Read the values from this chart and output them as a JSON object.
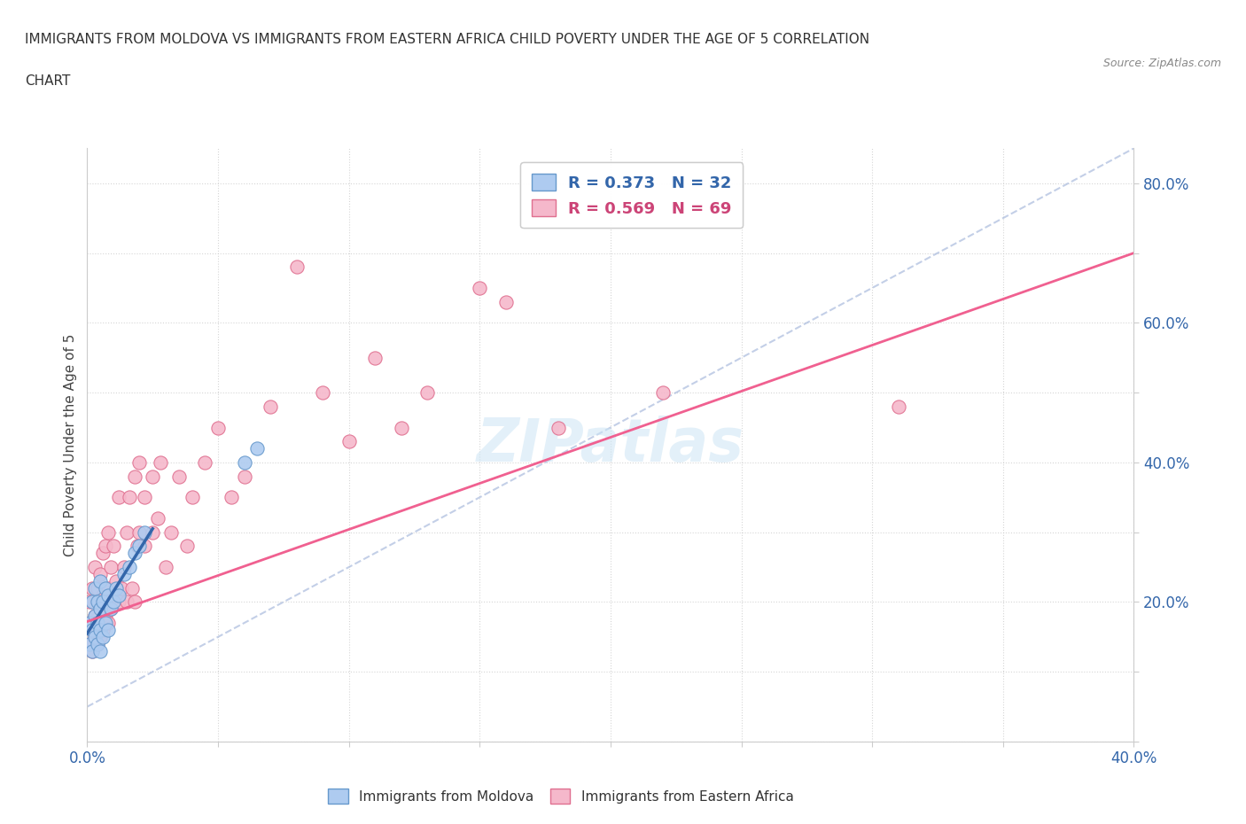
{
  "title_line1": "IMMIGRANTS FROM MOLDOVA VS IMMIGRANTS FROM EASTERN AFRICA CHILD POVERTY UNDER THE AGE OF 5 CORRELATION",
  "title_line2": "CHART",
  "source_text": "Source: ZipAtlas.com",
  "ylabel_label": "Child Poverty Under the Age of 5",
  "xlim": [
    0.0,
    0.4
  ],
  "ylim": [
    0.0,
    0.85
  ],
  "watermark": "ZIPatlas",
  "moldova_color": "#aecbf0",
  "moldova_edge": "#6699cc",
  "eastern_africa_color": "#f5b8cb",
  "eastern_africa_edge": "#e07090",
  "trend_moldova_color": "#3366aa",
  "trend_moldova_dash_color": "#aaaacc",
  "trend_eastern_africa_color": "#f06090",
  "moldova_R": 0.373,
  "moldova_N": 32,
  "eastern_africa_R": 0.569,
  "eastern_africa_N": 69,
  "moldova_scatter_x": [
    0.001,
    0.001,
    0.002,
    0.002,
    0.002,
    0.003,
    0.003,
    0.003,
    0.004,
    0.004,
    0.004,
    0.005,
    0.005,
    0.005,
    0.005,
    0.006,
    0.006,
    0.007,
    0.007,
    0.008,
    0.008,
    0.009,
    0.01,
    0.011,
    0.012,
    0.014,
    0.016,
    0.018,
    0.02,
    0.022,
    0.06,
    0.065
  ],
  "moldova_scatter_y": [
    0.14,
    0.17,
    0.13,
    0.16,
    0.2,
    0.15,
    0.18,
    0.22,
    0.14,
    0.17,
    0.2,
    0.13,
    0.16,
    0.19,
    0.23,
    0.15,
    0.2,
    0.17,
    0.22,
    0.16,
    0.21,
    0.19,
    0.2,
    0.22,
    0.21,
    0.24,
    0.25,
    0.27,
    0.28,
    0.3,
    0.4,
    0.42
  ],
  "eastern_africa_scatter_x": [
    0.001,
    0.001,
    0.001,
    0.002,
    0.002,
    0.002,
    0.003,
    0.003,
    0.003,
    0.004,
    0.004,
    0.004,
    0.005,
    0.005,
    0.005,
    0.006,
    0.006,
    0.006,
    0.007,
    0.007,
    0.007,
    0.008,
    0.008,
    0.008,
    0.009,
    0.009,
    0.01,
    0.01,
    0.011,
    0.012,
    0.012,
    0.013,
    0.014,
    0.015,
    0.015,
    0.016,
    0.017,
    0.018,
    0.018,
    0.019,
    0.02,
    0.02,
    0.022,
    0.022,
    0.025,
    0.025,
    0.027,
    0.028,
    0.03,
    0.032,
    0.035,
    0.038,
    0.04,
    0.045,
    0.05,
    0.055,
    0.06,
    0.07,
    0.08,
    0.09,
    0.1,
    0.11,
    0.12,
    0.13,
    0.15,
    0.16,
    0.18,
    0.22,
    0.31
  ],
  "eastern_africa_scatter_y": [
    0.14,
    0.17,
    0.2,
    0.13,
    0.16,
    0.22,
    0.15,
    0.18,
    0.25,
    0.14,
    0.17,
    0.22,
    0.15,
    0.2,
    0.24,
    0.16,
    0.21,
    0.27,
    0.18,
    0.22,
    0.28,
    0.17,
    0.22,
    0.3,
    0.19,
    0.25,
    0.2,
    0.28,
    0.23,
    0.2,
    0.35,
    0.22,
    0.25,
    0.2,
    0.3,
    0.35,
    0.22,
    0.2,
    0.38,
    0.28,
    0.3,
    0.4,
    0.28,
    0.35,
    0.3,
    0.38,
    0.32,
    0.4,
    0.25,
    0.3,
    0.38,
    0.28,
    0.35,
    0.4,
    0.45,
    0.35,
    0.38,
    0.48,
    0.68,
    0.5,
    0.43,
    0.55,
    0.45,
    0.5,
    0.65,
    0.63,
    0.45,
    0.5,
    0.48
  ],
  "trend_ea_x0": 0.0,
  "trend_ea_y0": 0.172,
  "trend_ea_x1": 0.4,
  "trend_ea_y1": 0.7,
  "trend_mol_x0": 0.0,
  "trend_mol_x1": 0.025,
  "trend_mol_y0": 0.155,
  "trend_mol_y1": 0.305,
  "trend_dash_x0": 0.0,
  "trend_dash_x1": 0.4,
  "trend_dash_y0": 0.05,
  "trend_dash_y1": 0.85
}
